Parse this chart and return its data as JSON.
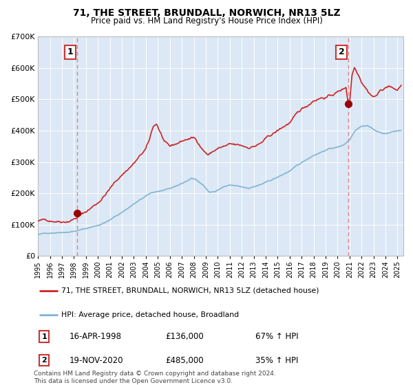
{
  "title": "71, THE STREET, BRUNDALL, NORWICH, NR13 5LZ",
  "subtitle": "Price paid vs. HM Land Registry's House Price Index (HPI)",
  "legend_line1": "71, THE STREET, BRUNDALL, NORWICH, NR13 5LZ (detached house)",
  "legend_line2": "HPI: Average price, detached house, Broadland",
  "annotation1_date": "16-APR-1998",
  "annotation1_price": "£136,000",
  "annotation1_hpi": "67% ↑ HPI",
  "annotation2_date": "19-NOV-2020",
  "annotation2_price": "£485,000",
  "annotation2_hpi": "35% ↑ HPI",
  "footnote": "Contains HM Land Registry data © Crown copyright and database right 2024.\nThis data is licensed under the Open Government Licence v3.0.",
  "sale1_year": 1998.29,
  "sale1_value": 136000,
  "sale2_year": 2020.88,
  "sale2_value": 485000,
  "hpi_color": "#7fb3d3",
  "price_color": "#cc2222",
  "dot_color": "#990000",
  "vline1_color": "#e08080",
  "vline2_color": "#e08080",
  "plot_bg": "#dce8f5",
  "fig_bg": "#ffffff",
  "grid_color": "#ffffff",
  "ylim": [
    0,
    700000
  ],
  "xlim_start": 1995.0,
  "xlim_end": 2025.5,
  "ytick_labels": [
    "£0",
    "£100K",
    "£200K",
    "£300K",
    "£400K",
    "£500K",
    "£600K",
    "£700K"
  ],
  "ytick_values": [
    0,
    100000,
    200000,
    300000,
    400000,
    500000,
    600000,
    700000
  ],
  "xtick_years": [
    1995,
    1996,
    1997,
    1998,
    1999,
    2000,
    2001,
    2002,
    2003,
    2004,
    2005,
    2006,
    2007,
    2008,
    2009,
    2010,
    2011,
    2012,
    2013,
    2014,
    2015,
    2016,
    2017,
    2018,
    2019,
    2020,
    2021,
    2022,
    2023,
    2024,
    2025
  ],
  "hpi_anchors": [
    [
      1995.0,
      68000
    ],
    [
      1996.0,
      74000
    ],
    [
      1997.0,
      79000
    ],
    [
      1998.0,
      84000
    ],
    [
      1999.0,
      92000
    ],
    [
      2000.0,
      103000
    ],
    [
      2001.0,
      120000
    ],
    [
      2002.0,
      145000
    ],
    [
      2003.0,
      172000
    ],
    [
      2004.0,
      195000
    ],
    [
      2004.5,
      205000
    ],
    [
      2005.0,
      210000
    ],
    [
      2006.0,
      215000
    ],
    [
      2007.0,
      232000
    ],
    [
      2007.8,
      248000
    ],
    [
      2008.3,
      242000
    ],
    [
      2008.8,
      228000
    ],
    [
      2009.3,
      205000
    ],
    [
      2009.8,
      208000
    ],
    [
      2010.5,
      222000
    ],
    [
      2011.0,
      225000
    ],
    [
      2011.5,
      222000
    ],
    [
      2012.0,
      218000
    ],
    [
      2012.5,
      215000
    ],
    [
      2013.0,
      220000
    ],
    [
      2014.0,
      232000
    ],
    [
      2015.0,
      248000
    ],
    [
      2016.0,
      268000
    ],
    [
      2017.0,
      292000
    ],
    [
      2018.0,
      318000
    ],
    [
      2019.0,
      336000
    ],
    [
      2019.5,
      342000
    ],
    [
      2020.0,
      345000
    ],
    [
      2020.5,
      352000
    ],
    [
      2021.0,
      370000
    ],
    [
      2021.5,
      402000
    ],
    [
      2022.0,
      418000
    ],
    [
      2022.5,
      420000
    ],
    [
      2022.8,
      415000
    ],
    [
      2023.0,
      408000
    ],
    [
      2023.5,
      398000
    ],
    [
      2024.0,
      395000
    ],
    [
      2024.5,
      400000
    ],
    [
      2025.3,
      405000
    ]
  ],
  "price_anchors": [
    [
      1995.0,
      112000
    ],
    [
      1996.0,
      114000
    ],
    [
      1997.0,
      118000
    ],
    [
      1997.5,
      122000
    ],
    [
      1998.29,
      136000
    ],
    [
      1999.0,
      152000
    ],
    [
      2000.0,
      182000
    ],
    [
      2001.0,
      228000
    ],
    [
      2002.0,
      272000
    ],
    [
      2003.0,
      310000
    ],
    [
      2003.5,
      330000
    ],
    [
      2004.0,
      352000
    ],
    [
      2004.3,
      378000
    ],
    [
      2004.6,
      420000
    ],
    [
      2004.9,
      430000
    ],
    [
      2005.3,
      395000
    ],
    [
      2005.6,
      368000
    ],
    [
      2006.0,
      350000
    ],
    [
      2006.5,
      358000
    ],
    [
      2007.0,
      368000
    ],
    [
      2007.5,
      375000
    ],
    [
      2008.0,
      378000
    ],
    [
      2008.4,
      362000
    ],
    [
      2008.8,
      342000
    ],
    [
      2009.2,
      328000
    ],
    [
      2009.6,
      338000
    ],
    [
      2010.0,
      348000
    ],
    [
      2010.5,
      352000
    ],
    [
      2011.0,
      355000
    ],
    [
      2011.5,
      350000
    ],
    [
      2012.0,
      346000
    ],
    [
      2012.5,
      342000
    ],
    [
      2013.0,
      348000
    ],
    [
      2013.5,
      355000
    ],
    [
      2014.0,
      368000
    ],
    [
      2015.0,
      392000
    ],
    [
      2016.0,
      418000
    ],
    [
      2017.0,
      455000
    ],
    [
      2017.5,
      468000
    ],
    [
      2018.0,
      488000
    ],
    [
      2018.5,
      498000
    ],
    [
      2019.0,
      502000
    ],
    [
      2019.5,
      508000
    ],
    [
      2020.0,
      518000
    ],
    [
      2020.5,
      528000
    ],
    [
      2020.7,
      535000
    ],
    [
      2020.88,
      485000
    ],
    [
      2021.0,
      488000
    ],
    [
      2021.2,
      575000
    ],
    [
      2021.4,
      602000
    ],
    [
      2021.6,
      590000
    ],
    [
      2021.8,
      578000
    ],
    [
      2022.0,
      562000
    ],
    [
      2022.3,
      548000
    ],
    [
      2022.6,
      532000
    ],
    [
      2023.0,
      518000
    ],
    [
      2023.3,
      525000
    ],
    [
      2023.6,
      538000
    ],
    [
      2024.0,
      548000
    ],
    [
      2024.3,
      555000
    ],
    [
      2024.6,
      545000
    ],
    [
      2025.0,
      538000
    ],
    [
      2025.3,
      555000
    ]
  ]
}
